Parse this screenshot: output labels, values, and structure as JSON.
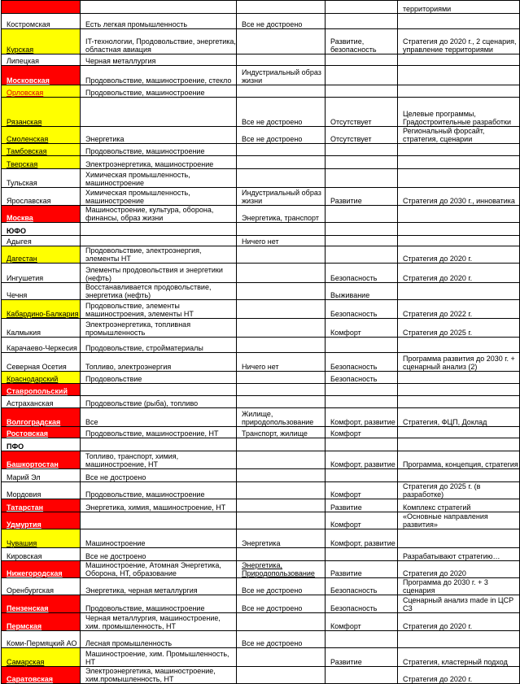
{
  "colors": {
    "red": "#ff0000",
    "yellow": "#ffff00"
  },
  "rows": [
    {
      "fill": "red",
      "h": 16,
      "cells": [
        "",
        "",
        "",
        "",
        "территориями"
      ]
    },
    {
      "fill": "",
      "h": 19,
      "cells": [
        "Костромская",
        "Есть легкая промышленность",
        "Все не достроено",
        "",
        ""
      ]
    },
    {
      "fill": "yel",
      "h": 31,
      "cells": [
        "Курская",
        "IT-технологии, Продовольствие, энергетика, областная авиация",
        "",
        "Развитие, безопасность",
        "Стратегия до 2020 г., 2 сценария, управление территориями"
      ]
    },
    {
      "fill": "",
      "h": 14,
      "cells": [
        "Липецкая",
        "Черная металлургия",
        "",
        "",
        ""
      ]
    },
    {
      "fill": "red",
      "h": 24,
      "cells": [
        "Московская",
        "Продовольствие, машиностроение, стекло",
        "Индустриальный образ жизни",
        "",
        ""
      ]
    },
    {
      "fill": "yelo",
      "h": 15,
      "cells": [
        "Орловская",
        "Продовольствие, машиностроение",
        "",
        "",
        ""
      ]
    },
    {
      "fill": "yel",
      "h": 36,
      "cells": [
        "Рязанская",
        "",
        "Все не достроено",
        "Отсутствует",
        "Целевые программы, Градостроительные разработки"
      ]
    },
    {
      "fill": "yel",
      "h": 17,
      "cells": [
        "Смоленская",
        "Энергетика",
        "Все не достроено",
        "Отсутствует",
        "Региональный форсайт, стратегия, сценарии"
      ]
    },
    {
      "fill": "yel",
      "h": 15,
      "cells": [
        "Тамбовская",
        "Продовольствие, машиностроение",
        "",
        "",
        ""
      ]
    },
    {
      "fill": "yel",
      "h": 16,
      "cells": [
        "Тверская",
        "Электроэнергетика, машиностроение",
        "",
        "",
        ""
      ]
    },
    {
      "fill": "",
      "h": 23,
      "cells": [
        "Тульская",
        "Химическая промышленность, машиностроение",
        "",
        "",
        ""
      ]
    },
    {
      "fill": "",
      "h": 22,
      "cells": [
        "Ярославская",
        "Химическая промышленность, машиностроение",
        "Индустриальный образ жизни",
        "Развитие",
        "Стратегия до 2030 г., инноватика"
      ]
    },
    {
      "fill": "red",
      "h": 20,
      "cells": [
        "Москва",
        "Машиностроение, культура, оборона, финансы, образ жизни",
        "Энергетика, транспорт",
        "",
        ""
      ]
    },
    {
      "fill": "hdr",
      "h": 16,
      "cells": [
        "ЮФО",
        "",
        "",
        "",
        ""
      ]
    },
    {
      "fill": "",
      "h": 13,
      "cells": [
        "Адыгея",
        "",
        "Ничего нет",
        "",
        ""
      ]
    },
    {
      "fill": "yel",
      "h": 21,
      "cells": [
        "Дагестан",
        "Продовольствие, электроэнергия, элементы НТ",
        "",
        "",
        "Стратегия до 2020 г."
      ]
    },
    {
      "fill": "",
      "h": 24,
      "cells": [
        "Ингушетия",
        "Элементы продовольствия и энергетики (нефть)",
        "",
        "Безопасность",
        "Стратегия до 2020 г."
      ]
    },
    {
      "fill": "",
      "h": 20,
      "cells": [
        "Чечня",
        "Восстанавливается продовольствие, энергетика (нефть)",
        "",
        "Выживание",
        ""
      ]
    },
    {
      "fill": "yel",
      "h": 23,
      "cells": [
        "Кабардино-Балкария",
        "Продовольствие, элементы машиностроения, элементы НТ",
        "",
        "Безопасность",
        "Стратегия до 2022 г."
      ]
    },
    {
      "fill": "",
      "h": 23,
      "cells": [
        "Калмыкия",
        "Электроэнергетика, топливная промышленность",
        "",
        "Комфорт",
        "Стратегия до 2025 г."
      ]
    },
    {
      "fill": "",
      "h": 19,
      "cells": [
        "Карачаево-Черкесия",
        "Продовольствие, стройматериалы",
        "",
        "",
        ""
      ]
    },
    {
      "fill": "",
      "h": 23,
      "cells": [
        "Северная Осетия",
        "Топливо, электроэнергия",
        "Ничего нет",
        "Безопасность",
        "Программа развития до 2030 г. + сценарный анализ (2)"
      ]
    },
    {
      "fill": "yel",
      "h": 15,
      "cells": [
        "Краснодарский",
        "Продовольствие",
        "",
        "Безопасность",
        ""
      ]
    },
    {
      "fill": "red",
      "h": 15,
      "cells": [
        "Ставропольский",
        "",
        "",
        "",
        ""
      ]
    },
    {
      "fill": "",
      "h": 15,
      "cells": [
        "Астраханская",
        "Продовольствие (рыба), топливо",
        "",
        "",
        ""
      ]
    },
    {
      "fill": "red",
      "h": 23,
      "cells": [
        "Волгоградская",
        "Все",
        "Жилище, природопользование",
        "Комфорт, развитие",
        "Стратегия, ФЦП, Доклад"
      ]
    },
    {
      "fill": "red",
      "h": 14,
      "cells": [
        "Ростовская",
        "Продовольствие, машиностроение, НТ",
        "Транспорт, жилище",
        "Комфорт",
        ""
      ]
    },
    {
      "fill": "hdr",
      "h": 16,
      "cells": [
        "ПФО",
        "",
        "",
        "",
        ""
      ]
    },
    {
      "fill": "red",
      "h": 22,
      "cells": [
        "Башкортостан",
        "Топливо, транспорт, химия, машиностроение, НТ",
        "",
        "Комфорт, развитие",
        "Программа, концепция, стратегия"
      ]
    },
    {
      "fill": "",
      "h": 16,
      "cells": [
        "Марий Эл",
        "Все не достроено",
        "",
        "",
        ""
      ]
    },
    {
      "fill": "",
      "h": 21,
      "cells": [
        "Мордовия",
        "Продовольствие, машиностроение",
        "",
        "Комфорт",
        "Стратегия до 2025 г. (в разработке)"
      ]
    },
    {
      "fill": "red",
      "h": 16,
      "cells": [
        "Татарстан",
        "Энергетика, химия, машиностроение, НТ",
        "",
        "Развитие",
        "Комплекс стратегий"
      ]
    },
    {
      "fill": "red",
      "h": 19,
      "cells": [
        "Удмуртия",
        "",
        "",
        "Комфорт",
        "«Основные направления развития»"
      ]
    },
    {
      "fill": "yel",
      "h": 23,
      "cells": [
        "Чувашия",
        "Машиностроение",
        "Энергетика",
        "Комфорт, развитие",
        ""
      ]
    },
    {
      "fill": "",
      "h": 16,
      "cells": [
        "Кировская",
        "Все не достроено",
        "",
        "",
        "Разрабатывают стратегию…"
      ]
    },
    {
      "fill": "red",
      "h": 21,
      "u2": true,
      "cells": [
        "Нижегородская",
        "Машиностроение, Атомная Энергетика, Оборона, НТ, образование",
        "Энергетика, Природопользование",
        "Развитие",
        "Стратегия до 2020"
      ]
    },
    {
      "fill": "",
      "h": 20,
      "cells": [
        "Оренбургская",
        "Энергетика, черная металлургия",
        "Все не достроено",
        "Безопасность",
        "Программа до 2030 г. + 3 сценария"
      ]
    },
    {
      "fill": "red",
      "h": 22,
      "cells": [
        "Пензенская",
        "Продовольствие, машиностроение",
        "Все не достроено",
        "Безопасность",
        "Сценарный анализ made in ЦСР СЗ"
      ]
    },
    {
      "fill": "red",
      "h": 22,
      "cells": [
        "Пермская",
        "Черная металлургия, машиностроение, хим. промышленность, НТ",
        "",
        "Комфорт",
        "Стратегия до 2020 г."
      ]
    },
    {
      "fill": "",
      "h": 21,
      "cells": [
        "Коми-Пермяцкий АО",
        "Лесная промышленность",
        "Все не достроено",
        "",
        ""
      ]
    },
    {
      "fill": "yel",
      "h": 23,
      "cells": [
        "Самарская",
        "Машиностроение, хим. Промышленность, НТ",
        "",
        "Развитие",
        "Стратегия, кластерный подход"
      ]
    },
    {
      "fill": "red",
      "h": 20,
      "cells": [
        "Саратовская",
        "Электроэнергетика, машиностроение, хим.промышленность, НТ",
        "",
        "",
        "Стратегия до 2020 г."
      ]
    }
  ]
}
